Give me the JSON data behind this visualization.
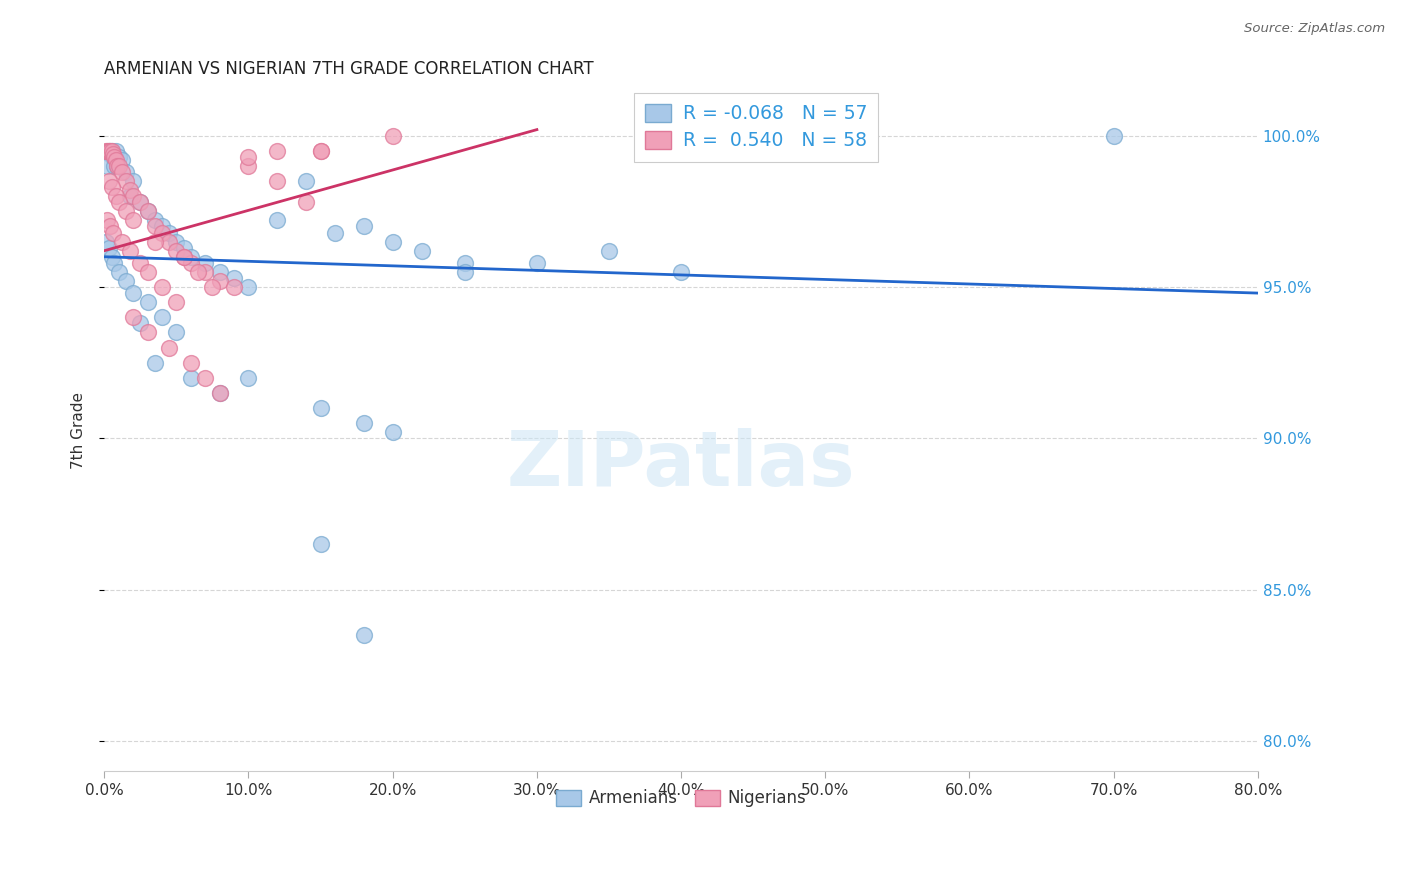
{
  "title": "ARMENIAN VS NIGERIAN 7TH GRADE CORRELATION CHART",
  "source": "Source: ZipAtlas.com",
  "ylabel": "7th Grade",
  "blue_R": -0.068,
  "blue_N": 57,
  "pink_R": 0.54,
  "pink_N": 58,
  "blue_color": "#a8c8e8",
  "pink_color": "#f0a0b8",
  "blue_edge_color": "#7aaad0",
  "pink_edge_color": "#e07898",
  "blue_line_color": "#2266cc",
  "pink_line_color": "#cc3366",
  "legend_label_blue": "Armenians",
  "legend_label_pink": "Nigerians",
  "xlim": [
    0,
    80
  ],
  "ylim": [
    79.0,
    101.5
  ],
  "xticks": [
    0,
    10,
    20,
    30,
    40,
    50,
    60,
    70,
    80
  ],
  "yticks": [
    80,
    85,
    90,
    95,
    100
  ],
  "blue_x": [
    0.3,
    0.5,
    0.8,
    0.4,
    0.6,
    1.0,
    1.2,
    0.2,
    0.7,
    0.9,
    1.5,
    2.0,
    1.8,
    2.5,
    3.0,
    3.5,
    4.0,
    4.5,
    5.0,
    5.5,
    6.0,
    7.0,
    8.0,
    9.0,
    10.0,
    12.0,
    14.0,
    16.0,
    18.0,
    20.0,
    22.0,
    25.0,
    0.1,
    0.3,
    0.5,
    0.7,
    1.0,
    1.5,
    2.0,
    3.0,
    4.0,
    5.0,
    2.5,
    3.5,
    6.0,
    8.0,
    10.0,
    15.0,
    18.0,
    20.0,
    25.0,
    30.0,
    35.0,
    40.0,
    70.0,
    15.0,
    18.0
  ],
  "blue_y": [
    99.5,
    99.5,
    99.5,
    99.4,
    99.3,
    99.3,
    99.2,
    99.0,
    99.0,
    99.0,
    98.8,
    98.5,
    98.0,
    97.8,
    97.5,
    97.2,
    97.0,
    96.8,
    96.5,
    96.3,
    96.0,
    95.8,
    95.5,
    95.3,
    95.0,
    97.2,
    98.5,
    96.8,
    97.0,
    96.5,
    96.2,
    95.8,
    96.5,
    96.3,
    96.0,
    95.8,
    95.5,
    95.2,
    94.8,
    94.5,
    94.0,
    93.5,
    93.8,
    92.5,
    92.0,
    91.5,
    92.0,
    91.0,
    90.5,
    90.2,
    95.5,
    95.8,
    96.2,
    95.5,
    100.0,
    86.5,
    83.5
  ],
  "pink_x": [
    0.1,
    0.2,
    0.3,
    0.4,
    0.5,
    0.6,
    0.7,
    0.8,
    0.9,
    1.0,
    1.2,
    1.5,
    1.8,
    2.0,
    2.5,
    3.0,
    3.5,
    4.0,
    4.5,
    5.0,
    5.5,
    6.0,
    7.0,
    8.0,
    9.0,
    10.0,
    12.0,
    14.0,
    15.0,
    0.3,
    0.5,
    0.8,
    1.0,
    1.5,
    2.0,
    0.2,
    0.4,
    0.6,
    1.2,
    1.8,
    2.5,
    3.0,
    4.0,
    5.0,
    2.0,
    3.0,
    4.5,
    6.0,
    7.0,
    8.0,
    3.5,
    5.5,
    6.5,
    7.5,
    10.0,
    12.0,
    15.0,
    20.0
  ],
  "pink_y": [
    99.5,
    99.5,
    99.5,
    99.5,
    99.5,
    99.4,
    99.3,
    99.2,
    99.0,
    99.0,
    98.8,
    98.5,
    98.2,
    98.0,
    97.8,
    97.5,
    97.0,
    96.8,
    96.5,
    96.2,
    96.0,
    95.8,
    95.5,
    95.2,
    95.0,
    99.0,
    98.5,
    97.8,
    99.5,
    98.5,
    98.3,
    98.0,
    97.8,
    97.5,
    97.2,
    97.2,
    97.0,
    96.8,
    96.5,
    96.2,
    95.8,
    95.5,
    95.0,
    94.5,
    94.0,
    93.5,
    93.0,
    92.5,
    92.0,
    91.5,
    96.5,
    96.0,
    95.5,
    95.0,
    99.3,
    99.5,
    99.5,
    100.0
  ],
  "blue_trend_x": [
    0,
    80
  ],
  "blue_trend_y": [
    96.0,
    94.8
  ],
  "pink_trend_x": [
    0,
    30
  ],
  "pink_trend_y": [
    96.2,
    100.2
  ]
}
